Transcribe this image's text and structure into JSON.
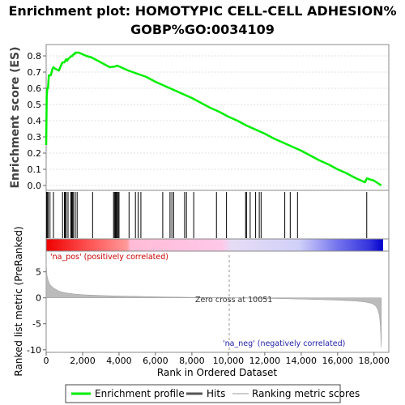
{
  "title_line1": "Enrichment plot: HOMOTYPIC CELL-CELL ADHESION%",
  "title_line2": "GOBP%GO:0034109",
  "colors": {
    "es_line": "#00ee00",
    "hit": "#000000",
    "metric_fill": "#bbbbbb",
    "pos_text": "#cc0000",
    "neg_text": "#2222aa"
  },
  "chart_data": [
    {
      "type": "line",
      "name": "enrichment-profile",
      "ylabel": "Enrichment score (ES)",
      "xlim": [
        0,
        18500
      ],
      "ylim": [
        -0.03,
        0.87
      ],
      "yticks": [
        0.0,
        0.1,
        0.2,
        0.3,
        0.4,
        0.5,
        0.6,
        0.7,
        0.8
      ],
      "ytick_labels": [
        "0.0",
        "0.1",
        "0.2",
        "0.3",
        "0.4",
        "0.5",
        "0.6",
        "0.7",
        "0.8"
      ],
      "x": [
        0,
        30,
        60,
        100,
        150,
        250,
        350,
        400,
        500,
        700,
        850,
        900,
        1000,
        1100,
        1150,
        1200,
        1300,
        1400,
        1450,
        1500,
        1550,
        1600,
        1700,
        1800,
        2000,
        2200,
        2500,
        3000,
        3500,
        3800,
        3900,
        4000,
        4500,
        5000,
        5500,
        6000,
        6500,
        7000,
        7500,
        8000,
        8500,
        9000,
        9500,
        10000,
        10500,
        11000,
        11500,
        12000,
        12500,
        13000,
        13500,
        14000,
        14500,
        15000,
        15500,
        16000,
        16500,
        17000,
        17500,
        17620,
        17700,
        18000,
        18200,
        18400
      ],
      "y": [
        0.25,
        0.55,
        0.6,
        0.6,
        0.68,
        0.68,
        0.72,
        0.73,
        0.72,
        0.71,
        0.75,
        0.76,
        0.76,
        0.78,
        0.77,
        0.78,
        0.79,
        0.8,
        0.8,
        0.81,
        0.81,
        0.82,
        0.82,
        0.82,
        0.81,
        0.8,
        0.79,
        0.76,
        0.73,
        0.735,
        0.74,
        0.735,
        0.71,
        0.69,
        0.67,
        0.64,
        0.615,
        0.59,
        0.565,
        0.54,
        0.51,
        0.48,
        0.455,
        0.425,
        0.4,
        0.37,
        0.345,
        0.32,
        0.29,
        0.265,
        0.24,
        0.215,
        0.185,
        0.155,
        0.13,
        0.1,
        0.075,
        0.045,
        0.02,
        0.045,
        0.04,
        0.03,
        0.015,
        0.0
      ]
    },
    {
      "type": "scatter",
      "name": "hits",
      "xlim": [
        0,
        18500
      ],
      "x": [
        20,
        60,
        110,
        210,
        400,
        900,
        1000,
        1050,
        1100,
        1200,
        1350,
        1400,
        1450,
        1500,
        1600,
        1700,
        2550,
        3700,
        3750,
        3800,
        3850,
        3900,
        3950,
        4000,
        4550,
        4900,
        5050,
        5200,
        6400,
        6800,
        6900,
        7000,
        7600,
        7700,
        8100,
        9350,
        9900,
        10950,
        11000,
        11200,
        11500,
        11700,
        11800,
        13100,
        13400,
        13800,
        17600
      ]
    },
    {
      "type": "area",
      "name": "ranked-list-metric",
      "ylabel": "Ranked list metric (PreRanked)",
      "xlabel": "Rank in Ordered Dataset",
      "xlim": [
        0,
        18500
      ],
      "ylim": [
        -10.5,
        9.0
      ],
      "xticks": [
        0,
        2000,
        4000,
        6000,
        8000,
        10000,
        12000,
        14000,
        16000,
        18000
      ],
      "xtick_labels": [
        "0",
        "2,000",
        "4,000",
        "6,000",
        "8,000",
        "10,000",
        "12,000",
        "14,000",
        "16,000",
        "18,000"
      ],
      "yticks": [
        -10,
        -5,
        0,
        5
      ],
      "ytick_labels": [
        "-10",
        "-5",
        "0",
        "5"
      ],
      "x": [
        0,
        10,
        50,
        100,
        200,
        400,
        700,
        1000,
        1500,
        2000,
        3000,
        4000,
        5000,
        6000,
        7000,
        8000,
        9000,
        10051,
        11000,
        12000,
        13000,
        14000,
        15000,
        16000,
        17000,
        17500,
        17900,
        18100,
        18200,
        18300,
        18350,
        18400
      ],
      "y": [
        9.0,
        6.0,
        4.2,
        3.5,
        2.6,
        1.9,
        1.3,
        1.0,
        0.75,
        0.6,
        0.45,
        0.35,
        0.28,
        0.2,
        0.14,
        0.09,
        0.04,
        0.0,
        -0.05,
        -0.1,
        -0.16,
        -0.24,
        -0.33,
        -0.45,
        -0.62,
        -0.8,
        -1.1,
        -1.6,
        -2.2,
        -3.5,
        -5.5,
        -9.5
      ]
    }
  ],
  "annotations": {
    "pos_label": "'na_pos' (positively correlated)",
    "neg_label": "'na_neg' (negatively correlated)",
    "zero_cross": "Zero cross at 10051",
    "zero_cross_x": 10051
  },
  "legend": {
    "items": [
      {
        "label": "Enrichment profile",
        "marker": "line-green"
      },
      {
        "label": "Hits",
        "marker": "line-black"
      },
      {
        "label": "Ranking metric scores",
        "marker": "line-gray"
      }
    ]
  }
}
